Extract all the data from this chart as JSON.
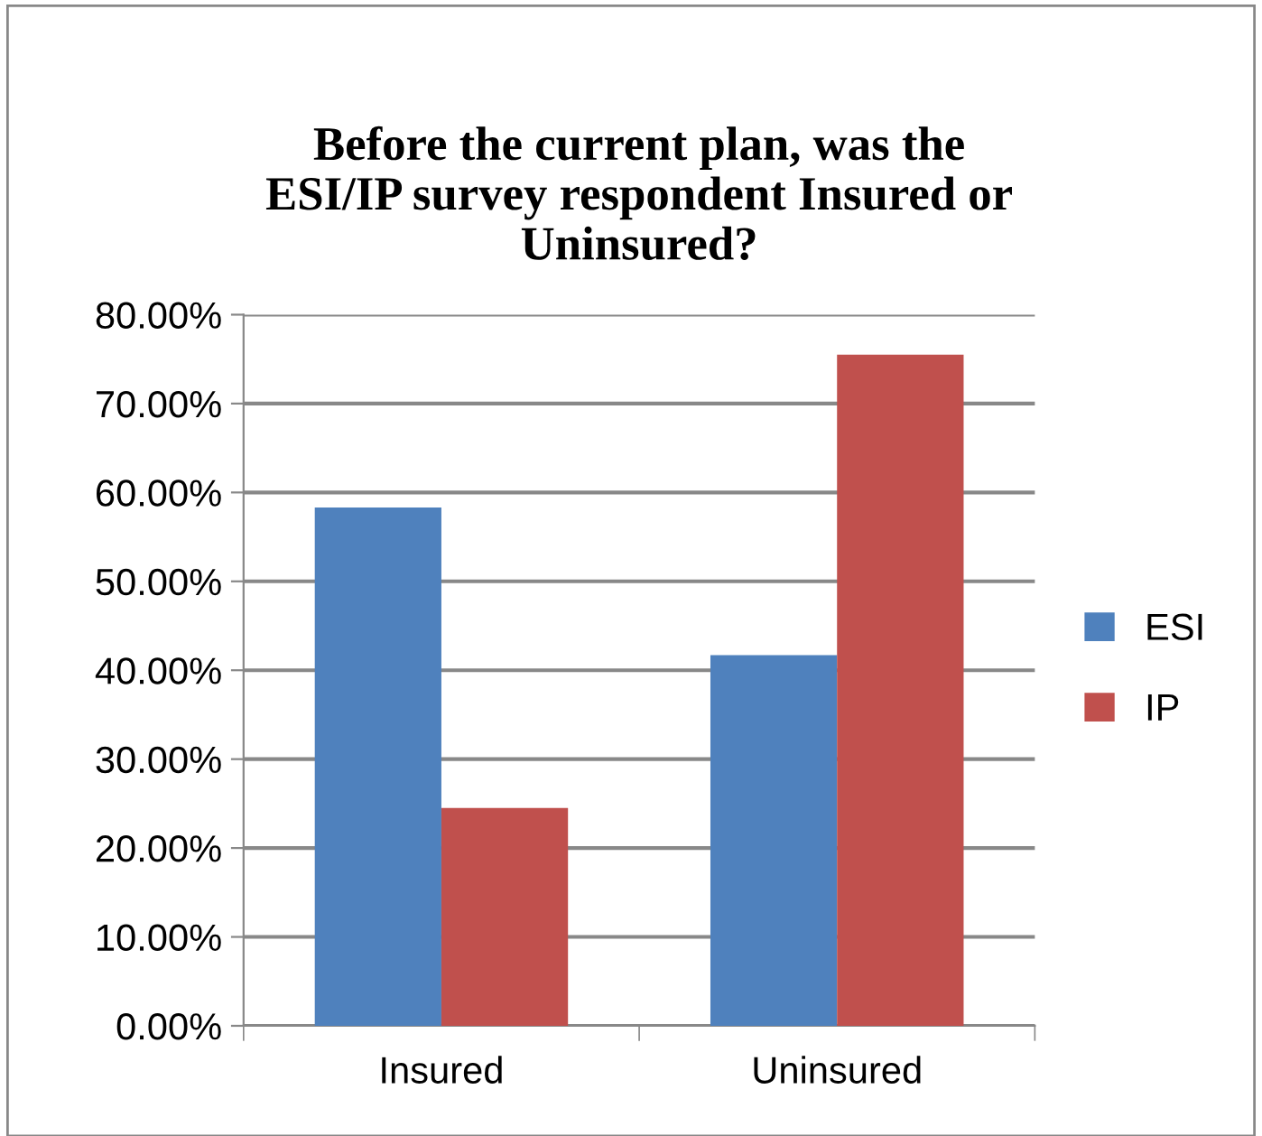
{
  "chart_data": {
    "type": "bar",
    "title": "Before the current plan, was the\nESI/IP survey respondent Insured or\nUninsured?",
    "categories": [
      "Insured",
      "Uninsured"
    ],
    "series": [
      {
        "name": "ESI",
        "color": "#4f81bd",
        "values": [
          58.3,
          41.7
        ]
      },
      {
        "name": "IP",
        "color": "#c0504d",
        "values": [
          24.5,
          75.5
        ]
      }
    ],
    "ylim": [
      0,
      80
    ],
    "yticks": [
      {
        "value": 0,
        "label": "0.00%"
      },
      {
        "value": 10,
        "label": "10.00%"
      },
      {
        "value": 20,
        "label": "20.00%"
      },
      {
        "value": 30,
        "label": "30.00%"
      },
      {
        "value": 40,
        "label": "40.00%"
      },
      {
        "value": 50,
        "label": "50.00%"
      },
      {
        "value": 60,
        "label": "60.00%"
      },
      {
        "value": 70,
        "label": "70.00%"
      },
      {
        "value": 80,
        "label": "80.00%"
      }
    ],
    "grid": "y",
    "legend": "right"
  }
}
